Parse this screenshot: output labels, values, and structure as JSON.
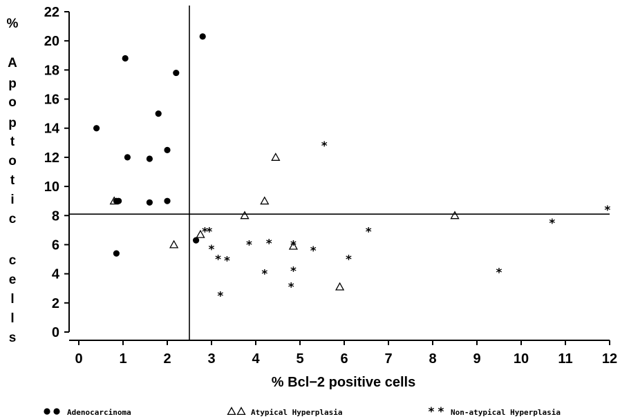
{
  "chart_data": {
    "type": "scatter",
    "xlabel": "% Bcl−2  positive cells",
    "ylabel_lines": [
      "%",
      "A",
      "p",
      "o",
      "p",
      "t",
      "o",
      "t",
      "i",
      "c",
      "",
      "c",
      "e",
      "l",
      "l",
      "s"
    ],
    "xlim": [
      0,
      12
    ],
    "ylim": [
      0,
      22
    ],
    "x_ticks": [
      0,
      1,
      2,
      3,
      4,
      5,
      6,
      7,
      8,
      9,
      10,
      11,
      12
    ],
    "y_ticks": [
      0,
      2,
      4,
      6,
      8,
      10,
      12,
      14,
      16,
      18,
      20,
      22
    ],
    "grid": false,
    "legend_position": "bottom",
    "reference_lines": {
      "x": 2.5,
      "y": 8.1
    },
    "series": [
      {
        "name": "Adenocarcinoma",
        "legend_label": "Adenocarcinoma",
        "marker": "circle",
        "points": [
          [
            0.4,
            14.0
          ],
          [
            0.85,
            9.0
          ],
          [
            0.9,
            9.0
          ],
          [
            0.85,
            5.4
          ],
          [
            1.05,
            18.8
          ],
          [
            1.1,
            12.0
          ],
          [
            1.6,
            11.9
          ],
          [
            1.6,
            8.9
          ],
          [
            1.8,
            15.0
          ],
          [
            2.0,
            12.5
          ],
          [
            2.0,
            9.0
          ],
          [
            2.2,
            17.8
          ],
          [
            2.65,
            6.3
          ],
          [
            2.8,
            20.3
          ]
        ]
      },
      {
        "name": "Atypical Hyperplasia",
        "legend_label": "Atypical Hyperplasia",
        "marker": "triangle",
        "points": [
          [
            0.8,
            9.0
          ],
          [
            2.15,
            6.0
          ],
          [
            2.75,
            6.7
          ],
          [
            3.75,
            8.0
          ],
          [
            4.2,
            9.0
          ],
          [
            4.45,
            12.0
          ],
          [
            4.85,
            5.9
          ],
          [
            5.9,
            3.1
          ],
          [
            8.5,
            8.0
          ]
        ]
      },
      {
        "name": "Non-atypical Hyperplasia",
        "legend_label": "Non-atypical Hyperplasia",
        "marker": "star",
        "points": [
          [
            2.85,
            6.9
          ],
          [
            2.95,
            6.9
          ],
          [
            3.0,
            5.7
          ],
          [
            3.15,
            5.0
          ],
          [
            3.2,
            2.5
          ],
          [
            3.35,
            4.9
          ],
          [
            3.85,
            6.0
          ],
          [
            4.2,
            4.0
          ],
          [
            4.3,
            6.1
          ],
          [
            4.8,
            3.1
          ],
          [
            4.85,
            4.2
          ],
          [
            4.85,
            6.0
          ],
          [
            5.3,
            5.6
          ],
          [
            5.55,
            12.8
          ],
          [
            6.1,
            5.0
          ],
          [
            6.55,
            6.9
          ],
          [
            9.5,
            4.1
          ],
          [
            10.7,
            7.5
          ],
          [
            11.95,
            8.4
          ]
        ]
      }
    ]
  }
}
